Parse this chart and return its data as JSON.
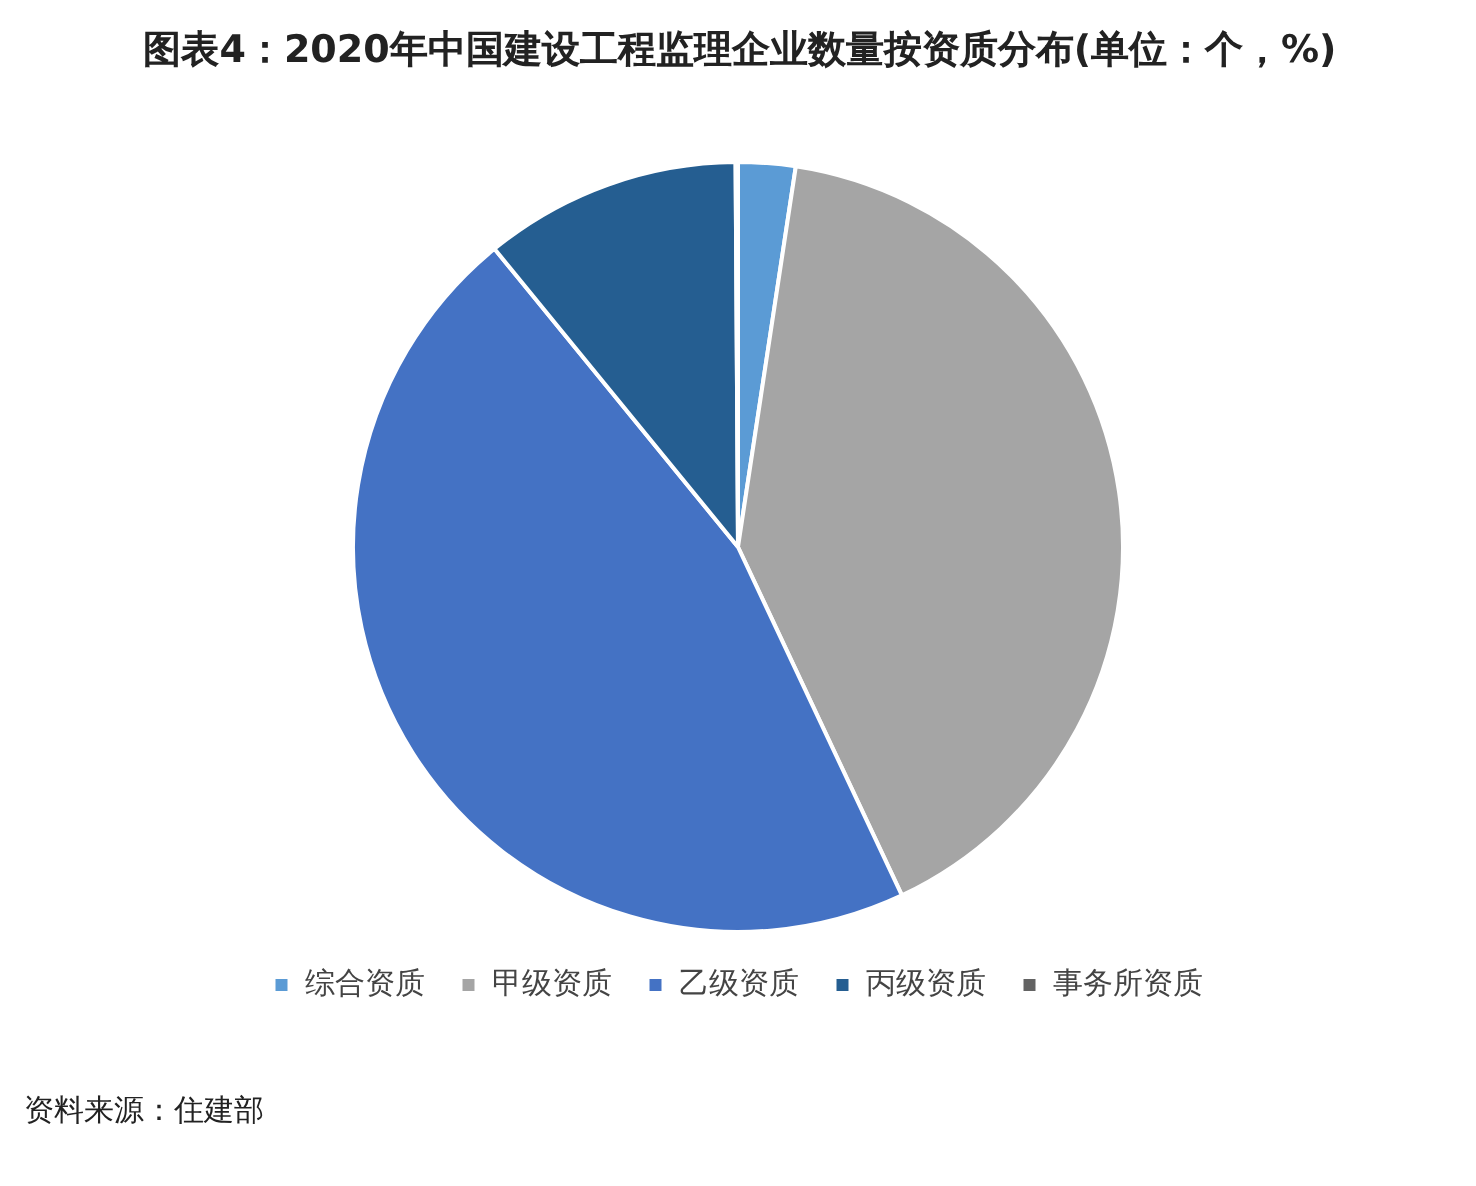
{
  "chart_data": {
    "type": "pie",
    "title": "图表4：2020年中国建设工程监理企业数量按资质分布(单位：个，%)",
    "categories": [
      "综合资质",
      "甲级资质",
      "乙级资质",
      "丙级资质",
      "事务所资质"
    ],
    "values": [
      2.4,
      40.6,
      46.1,
      10.8,
      0.1
    ],
    "colors": [
      "#5b9bd5",
      "#a5a5a5",
      "#4472c4",
      "#255e91",
      "#636363"
    ],
    "legend": "bottom",
    "annotations": [
      "资料来源：住建部"
    ]
  }
}
